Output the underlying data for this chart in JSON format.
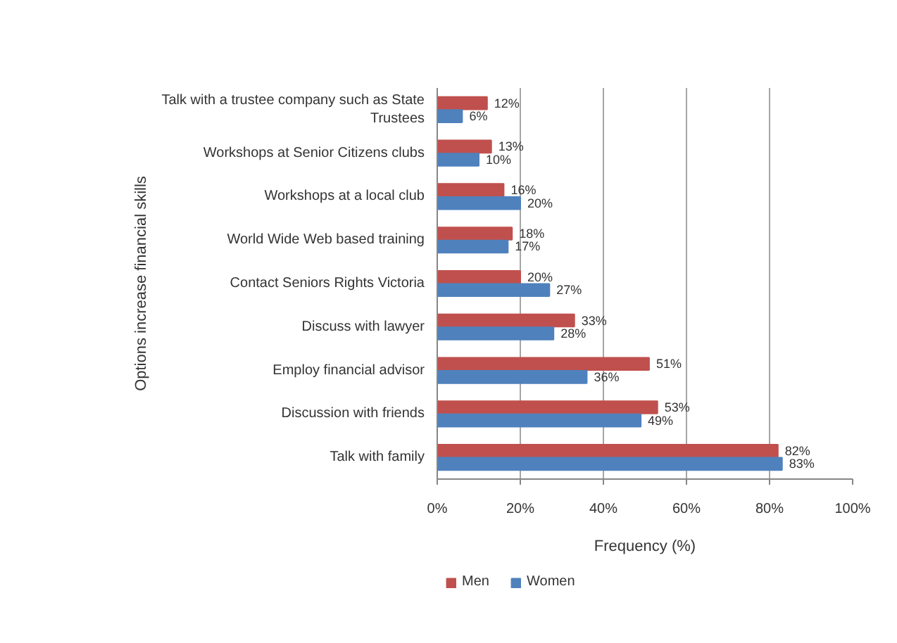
{
  "chart_data": {
    "type": "bar",
    "orientation": "horizontal",
    "categories": [
      "Talk with a trustee company such as State Trustees",
      "Workshops at Senior Citizens clubs",
      "Workshops at a local club",
      "World Wide Web based training",
      "Contact Seniors Rights Victoria",
      "Discuss with lawyer",
      "Employ financial advisor",
      "Discussion with friends",
      "Talk with family"
    ],
    "series": [
      {
        "name": "Men",
        "color": "#c0504d",
        "values": [
          12,
          13,
          16,
          18,
          20,
          33,
          51,
          53,
          82
        ],
        "value_labels": [
          "12%",
          "13%",
          "16%",
          "18%",
          "20%",
          "33%",
          "51%",
          "53%",
          "82%"
        ]
      },
      {
        "name": "Women",
        "color": "#4f81bd",
        "values": [
          6,
          10,
          20,
          17,
          27,
          28,
          36,
          49,
          83
        ],
        "value_labels": [
          "6%",
          "10%",
          "20%",
          "17%",
          "27%",
          "28%",
          "36%",
          "49%",
          "83%"
        ]
      }
    ],
    "xlabel": "Frequency (%)",
    "ylabel": "Options increase financial skills",
    "xlim": [
      0,
      100
    ],
    "xticks": [
      {
        "value": 0,
        "label": "0%"
      },
      {
        "value": 20,
        "label": "20%"
      },
      {
        "value": 40,
        "label": "40%"
      },
      {
        "value": 60,
        "label": "60%"
      },
      {
        "value": 80,
        "label": "80%"
      },
      {
        "value": 100,
        "label": "100%"
      }
    ],
    "grid": "x",
    "legend": "bottom"
  }
}
